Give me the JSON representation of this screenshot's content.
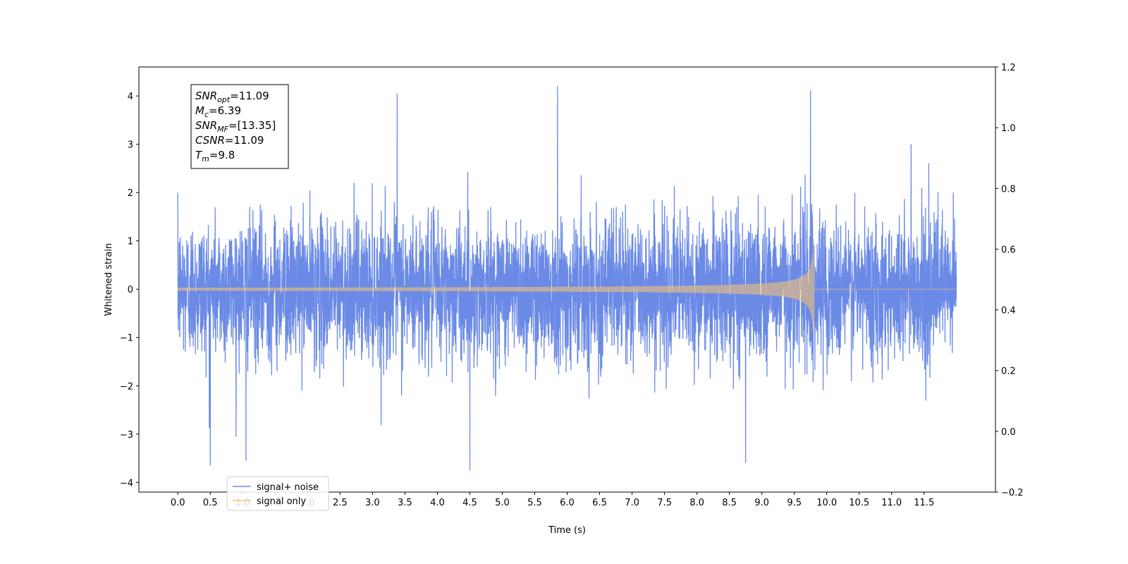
{
  "chart_data": {
    "type": "line",
    "xlabel": "Time (s)",
    "ylabel": "Whitened strain",
    "xlim": [
      -0.6,
      12.6
    ],
    "ylim": [
      -4.2,
      4.6
    ],
    "y2lim": [
      -0.2,
      1.2
    ],
    "x_ticks": [
      "0.0",
      "0.5",
      "1.0",
      "1.5",
      "2.0",
      "2.5",
      "3.0",
      "3.5",
      "4.0",
      "4.5",
      "5.0",
      "5.5",
      "6.0",
      "6.5",
      "7.0",
      "7.5",
      "8.0",
      "8.5",
      "9.0",
      "9.5",
      "10.0",
      "10.5",
      "11.0",
      "11.5"
    ],
    "y_ticks": [
      "−4",
      "−3",
      "−2",
      "−1",
      "0",
      "1",
      "2",
      "3",
      "4"
    ],
    "y2_ticks": [
      "−0.2",
      "0.0",
      "0.2",
      "0.4",
      "0.6",
      "0.8",
      "1.0",
      "1.2"
    ],
    "legend": {
      "position": "lower-left",
      "entries": [
        "signal+ noise",
        "signal only"
      ]
    },
    "annotation": [
      {
        "base": "SNR",
        "sub": "opt",
        "value": "=11.09"
      },
      {
        "base": "M",
        "sub": "c",
        "value": "=6.39"
      },
      {
        "base": "SNR",
        "sub": "MF",
        "value": "=[13.35]"
      },
      {
        "base": "CSNR",
        "sub": "",
        "value": "=11.09"
      },
      {
        "base": "T",
        "sub": "m",
        "value": "=9.8"
      }
    ],
    "series": [
      {
        "name": "signal+ noise",
        "color": "#6a8ae6",
        "x_range": [
          0.0,
          12.0
        ],
        "sigma": 1.0,
        "peaks": [
          {
            "x": 0.0,
            "y": 2.0
          },
          {
            "x": 0.5,
            "y": -3.65
          },
          {
            "x": 1.05,
            "y": -3.55
          },
          {
            "x": 3.38,
            "y": 4.05
          },
          {
            "x": 4.5,
            "y": -3.75
          },
          {
            "x": 5.85,
            "y": 4.2
          },
          {
            "x": 8.75,
            "y": -3.6
          },
          {
            "x": 9.75,
            "y": 4.12
          },
          {
            "x": 11.3,
            "y": 3.0
          },
          {
            "x": 11.95,
            "y": 2.0
          }
        ]
      },
      {
        "name": "signal only",
        "color": "#ffc66e",
        "x_range": [
          0.0,
          12.0
        ],
        "merger_time": 9.8,
        "amplitude_start": 0.03,
        "peak_upper": 1.45,
        "peak_lower": -0.92
      }
    ]
  }
}
